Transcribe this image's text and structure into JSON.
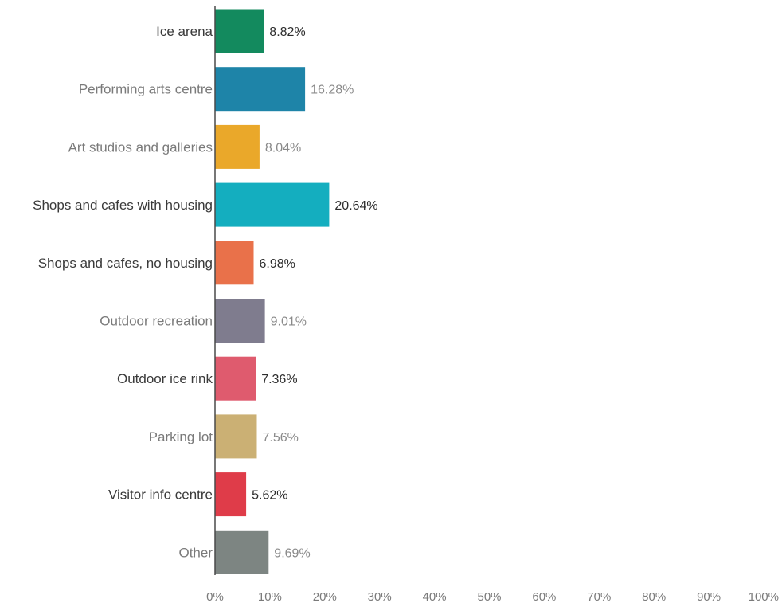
{
  "chart_data": {
    "type": "bar",
    "orientation": "horizontal",
    "categories": [
      "Ice arena",
      "Performing arts centre",
      "Art studios and galleries",
      "Shops and cafes with housing",
      "Shops and cafes, no housing",
      "Outdoor recreation",
      "Outdoor ice rink",
      "Parking lot",
      "Visitor info centre",
      "Other"
    ],
    "values": [
      8.82,
      16.28,
      8.04,
      20.64,
      6.98,
      9.01,
      7.36,
      7.56,
      5.62,
      9.69
    ],
    "value_labels": [
      "8.82%",
      "16.28%",
      "8.04%",
      "20.64%",
      "6.98%",
      "9.01%",
      "7.36%",
      "7.56%",
      "5.62%",
      "9.69%"
    ],
    "colors": [
      "#138a5e",
      "#1e84a8",
      "#eaa82a",
      "#14aebf",
      "#e9714a",
      "#7f7c8e",
      "#df5b6e",
      "#cbb074",
      "#df3c49",
      "#7d8582"
    ],
    "x_ticks": [
      "0%",
      "10%",
      "20%",
      "30%",
      "40%",
      "50%",
      "60%",
      "70%",
      "80%",
      "90%",
      "100%"
    ],
    "xlim": [
      0,
      100
    ],
    "grid": false,
    "title": "",
    "xlabel": "",
    "ylabel": ""
  }
}
